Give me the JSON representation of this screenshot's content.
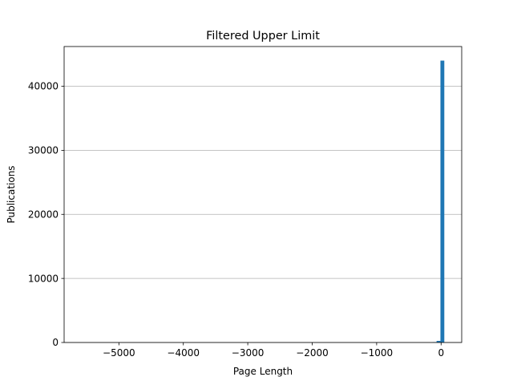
{
  "chart_data": {
    "type": "bar",
    "title": "Filtered Upper Limit",
    "xlabel": "Page Length",
    "ylabel": "Publications",
    "xlim": [
      -5850,
      320
    ],
    "ylim": [
      0,
      46200
    ],
    "xticks": [
      {
        "value": -5000,
        "label": "−5000"
      },
      {
        "value": -4000,
        "label": "−4000"
      },
      {
        "value": -3000,
        "label": "−3000"
      },
      {
        "value": -2000,
        "label": "−2000"
      },
      {
        "value": -1000,
        "label": "−1000"
      },
      {
        "value": 0,
        "label": "0"
      }
    ],
    "yticks": [
      {
        "value": 0,
        "label": "0"
      },
      {
        "value": 10000,
        "label": "10000"
      },
      {
        "value": 20000,
        "label": "20000"
      },
      {
        "value": 30000,
        "label": "30000"
      },
      {
        "value": 40000,
        "label": "40000"
      }
    ],
    "grid": {
      "y": true,
      "x": false
    },
    "bins": [
      {
        "x0": -130,
        "x1": -70,
        "count": 60
      },
      {
        "x0": -70,
        "x1": -10,
        "count": 250
      },
      {
        "x0": -10,
        "x1": 50,
        "count": 44000
      }
    ],
    "colors": {
      "bar": "#1f77b4",
      "grid": "#b0b0b0",
      "axis": "#000000"
    }
  }
}
